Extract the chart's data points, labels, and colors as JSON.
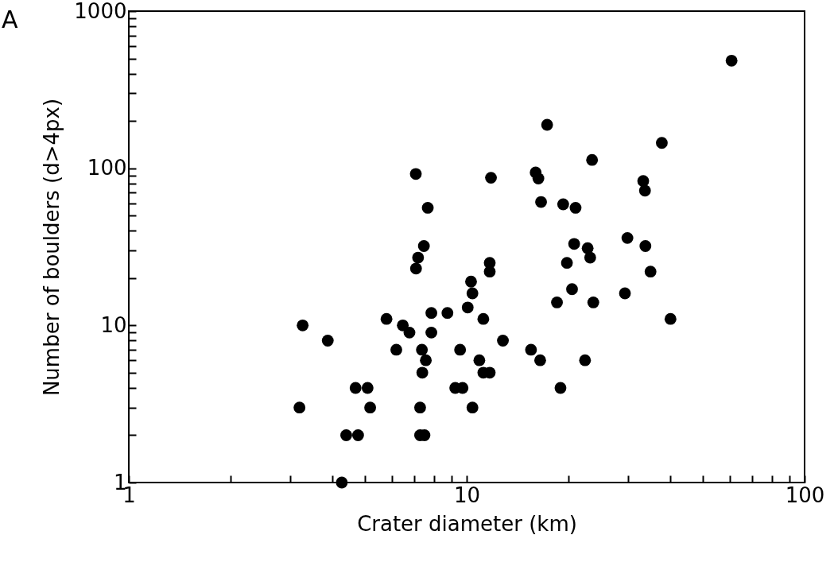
{
  "chart_data": {
    "type": "scatter",
    "xlabel": "Crater diameter (km)",
    "ylabel": "Number of boulders (d>4px)",
    "annotations": [
      "A"
    ],
    "log": "xy",
    "grid": false,
    "marker": "circle",
    "xlim": [
      1,
      100
    ],
    "ylim": [
      1,
      1000
    ],
    "xticks": [
      1,
      {
        "value": 2,
        "label": null
      },
      {
        "value": 3,
        "label": null
      },
      {
        "value": 4,
        "label": null
      },
      {
        "value": 5,
        "label": null
      },
      {
        "value": 6,
        "label": null
      },
      {
        "value": 7,
        "label": null
      },
      {
        "value": 8,
        "label": null
      },
      {
        "value": 9,
        "label": null
      },
      10,
      {
        "value": 20,
        "label": null
      },
      {
        "value": 30,
        "label": null
      },
      {
        "value": 40,
        "label": null
      },
      {
        "value": 50,
        "label": null
      },
      {
        "value": 60,
        "label": null
      },
      {
        "value": 70,
        "label": null
      },
      {
        "value": 80,
        "label": null
      },
      {
        "value": 90,
        "label": null
      },
      100
    ],
    "yticks": [
      1,
      {
        "value": 2,
        "label": null
      },
      {
        "value": 3,
        "label": null
      },
      {
        "value": 4,
        "label": null
      },
      {
        "value": 5,
        "label": null
      },
      {
        "value": 6,
        "label": null
      },
      {
        "value": 7,
        "label": null
      },
      {
        "value": 8,
        "label": null
      },
      {
        "value": 9,
        "label": null
      },
      10,
      {
        "value": 20,
        "label": null
      },
      {
        "value": 30,
        "label": null
      },
      {
        "value": 40,
        "label": null
      },
      {
        "value": 50,
        "label": null
      },
      {
        "value": 60,
        "label": null
      },
      {
        "value": 70,
        "label": null
      },
      {
        "value": 80,
        "label": null
      },
      {
        "value": 90,
        "label": null
      },
      100,
      {
        "value": 200,
        "label": null
      },
      {
        "value": 300,
        "label": null
      },
      {
        "value": 400,
        "label": null
      },
      {
        "value": 500,
        "label": null
      },
      {
        "value": 600,
        "label": null
      },
      {
        "value": 700,
        "label": null
      },
      {
        "value": 800,
        "label": null
      },
      {
        "value": 900,
        "label": null
      },
      1000
    ],
    "series": [
      {
        "color": "#000000",
        "x": [
          3.2,
          3.27,
          3.88,
          4.27,
          4.4,
          4.77,
          4.69,
          5.09,
          5.18,
          5.79,
          6.47,
          6.77,
          6.19,
          7.07,
          7.08,
          7.18,
          7.47,
          7.67,
          7.37,
          7.57,
          7.39,
          7.28,
          7.28,
          7.5,
          7.86,
          7.86,
          8.77,
          9.56,
          9.25,
          9.72,
          10.07,
          10.3,
          10.4,
          10.4,
          10.9,
          11.2,
          11.2,
          11.7,
          11.7,
          11.7,
          11.8,
          12.8,
          15.5,
          16.0,
          16.3,
          16.5,
          16.6,
          17.3,
          18.5,
          18.95,
          19.3,
          19.8,
          20.5,
          20.8,
          21.0,
          22.4,
          22.8,
          23.2,
          23.5,
          23.7,
          29.4,
          29.9,
          33.3,
          33.7,
          33.8,
          35.0,
          37.8,
          40.1,
          60.8
        ],
        "values": [
          3,
          10,
          8,
          1,
          2,
          2,
          4,
          4,
          3,
          11,
          10,
          9,
          7,
          92,
          23,
          27,
          32,
          56,
          7,
          6,
          5,
          3,
          2,
          2,
          12,
          9,
          12,
          7,
          4,
          4,
          13,
          19,
          16,
          3,
          6,
          11,
          5,
          5,
          25,
          22,
          87,
          8,
          7,
          94,
          86,
          6,
          61,
          189,
          14,
          4,
          59,
          25,
          17,
          33,
          56,
          6,
          31,
          27,
          113,
          14,
          16,
          36,
          83,
          72,
          32,
          22,
          145,
          11,
          484
        ]
      }
    ]
  }
}
